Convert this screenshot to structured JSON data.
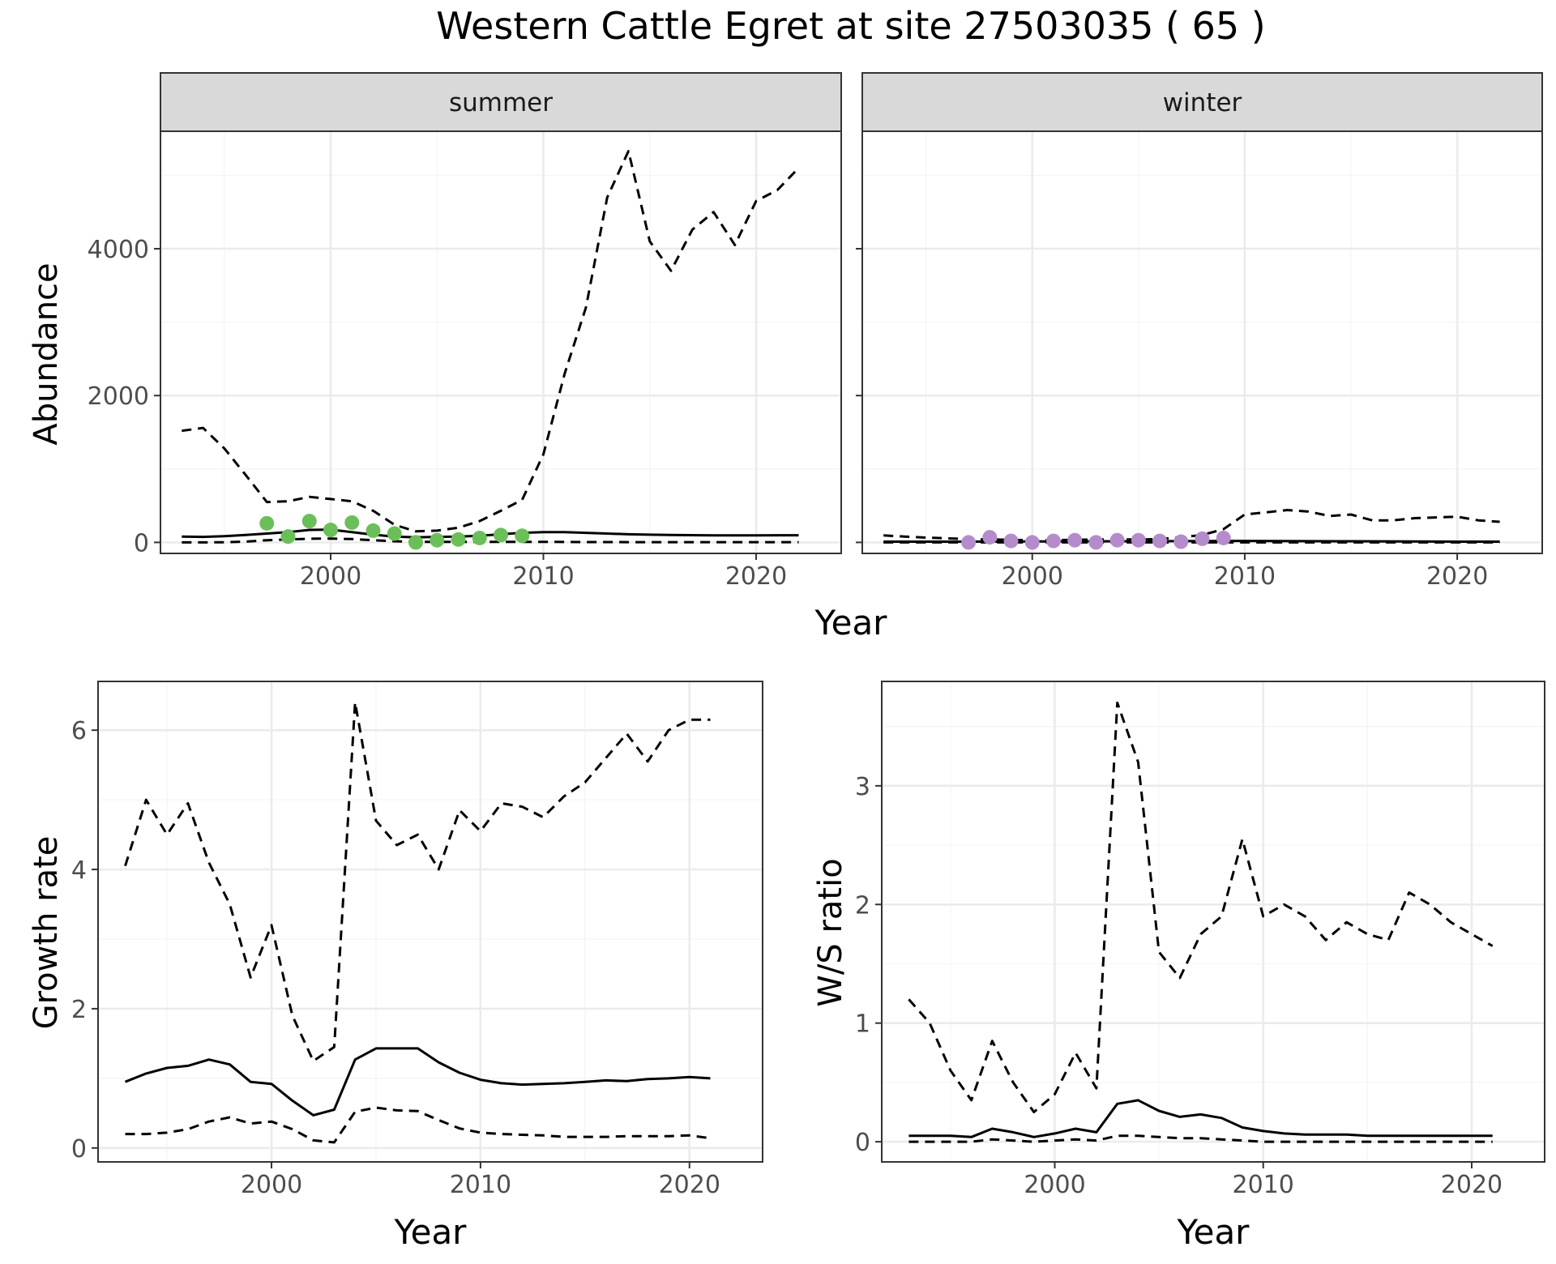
{
  "figure": {
    "title": "Western Cattle Egret at site 27503035 ( 65 )"
  },
  "colors": {
    "summer_points": "#6bbf59",
    "winter_points": "#b48ccb",
    "line": "#000000",
    "strip_bg": "#d9d9d9",
    "grid_major": "#ebebeb",
    "grid_minor": "#f5f5f5",
    "tick_text": "#4d4d4d"
  },
  "chart_data": [
    {
      "type": "line",
      "title": "",
      "facet": "summer",
      "xlabel": "Year",
      "ylabel": "Abundance",
      "xlim": [
        1992,
        2024
      ],
      "ylim": [
        -150,
        5600
      ],
      "x_ticks": [
        2000,
        2010,
        2020
      ],
      "y_ticks": [
        0,
        2000,
        4000
      ],
      "grid": true,
      "series": [
        {
          "style": "solid",
          "x": [
            1993,
            1994,
            1995,
            1996,
            1997,
            1998,
            1999,
            2000,
            2001,
            2002,
            2003,
            2004,
            2005,
            2006,
            2007,
            2008,
            2009,
            2010,
            2011,
            2012,
            2013,
            2014,
            2015,
            2016,
            2017,
            2018,
            2019,
            2020,
            2021,
            2022
          ],
          "y": [
            80,
            75,
            85,
            100,
            120,
            140,
            170,
            175,
            140,
            105,
            80,
            70,
            75,
            80,
            90,
            110,
            130,
            140,
            140,
            130,
            120,
            110,
            105,
            100,
            98,
            96,
            96,
            96,
            97,
            97
          ]
        },
        {
          "style": "dashed",
          "x": [
            1993,
            1994,
            1995,
            1996,
            1997,
            1998,
            1999,
            2000,
            2001,
            2002,
            2003,
            2004,
            2005,
            2006,
            2007,
            2008,
            2009,
            2010,
            2011,
            2012,
            2013,
            2014,
            2015,
            2016,
            2017,
            2018,
            2019,
            2020,
            2021,
            2022
          ],
          "y": [
            1520,
            1560,
            1280,
            920,
            550,
            560,
            620,
            590,
            560,
            430,
            240,
            150,
            160,
            200,
            290,
            430,
            580,
            1200,
            2300,
            3200,
            4700,
            5330,
            4100,
            3700,
            4260,
            4500,
            4050,
            4650,
            4800,
            5100
          ]
        },
        {
          "style": "dashed",
          "x": [
            1993,
            1994,
            1995,
            1996,
            1997,
            1998,
            1999,
            2000,
            2001,
            2002,
            2003,
            2004,
            2005,
            2006,
            2007,
            2008,
            2009,
            2010,
            2011,
            2012,
            2013,
            2014,
            2015,
            2016,
            2017,
            2018,
            2019,
            2020,
            2021,
            2022
          ],
          "y": [
            0,
            0,
            2,
            10,
            30,
            40,
            50,
            52,
            45,
            30,
            15,
            8,
            8,
            8,
            8,
            8,
            8,
            8,
            6,
            5,
            4,
            3,
            3,
            3,
            3,
            3,
            3,
            3,
            3,
            3
          ]
        },
        {
          "style": "points",
          "x": [
            1997,
            1998,
            1999,
            2000,
            2001,
            2002,
            2003,
            2004,
            2005,
            2006,
            2007,
            2008,
            2009
          ],
          "y": [
            260,
            80,
            290,
            170,
            270,
            160,
            120,
            0,
            30,
            40,
            60,
            100,
            90
          ]
        }
      ]
    },
    {
      "type": "line",
      "title": "",
      "facet": "winter",
      "xlabel": "Year",
      "ylabel": "Abundance",
      "xlim": [
        1992,
        2024
      ],
      "ylim": [
        -150,
        5600
      ],
      "x_ticks": [
        2000,
        2010,
        2020
      ],
      "y_ticks": [
        0,
        2000,
        4000
      ],
      "grid": true,
      "series": [
        {
          "style": "solid",
          "x": [
            1993,
            1996,
            2000,
            2005,
            2010,
            2015,
            2020,
            2022
          ],
          "y": [
            10,
            10,
            12,
            15,
            20,
            15,
            10,
            10
          ]
        },
        {
          "style": "dashed",
          "x": [
            1993,
            1994,
            1995,
            1996,
            1997,
            1998,
            1999,
            2000,
            2001,
            2002,
            2003,
            2004,
            2005,
            2006,
            2007,
            2008,
            2009,
            2010,
            2011,
            2012,
            2013,
            2014,
            2015,
            2016,
            2017,
            2018,
            2019,
            2020,
            2021,
            2022
          ],
          "y": [
            95,
            80,
            65,
            55,
            45,
            40,
            35,
            30,
            30,
            35,
            40,
            40,
            40,
            45,
            70,
            100,
            180,
            380,
            410,
            440,
            420,
            360,
            380,
            300,
            300,
            330,
            340,
            350,
            300,
            280
          ]
        },
        {
          "style": "dashed",
          "x": [
            1993,
            2000,
            2010,
            2022
          ],
          "y": [
            0,
            0,
            0,
            0
          ]
        },
        {
          "style": "points",
          "x": [
            1997,
            1998,
            1999,
            2000,
            2001,
            2002,
            2003,
            2004,
            2005,
            2006,
            2007,
            2008,
            2009
          ],
          "y": [
            0,
            70,
            20,
            0,
            20,
            30,
            0,
            30,
            30,
            20,
            10,
            50,
            60
          ]
        }
      ]
    },
    {
      "type": "line",
      "title": "",
      "xlabel": "Year",
      "ylabel": "Growth rate",
      "xlim": [
        1991.7,
        2023.5
      ],
      "ylim": [
        -0.2,
        6.7
      ],
      "x_ticks": [
        2000,
        2010,
        2020
      ],
      "y_ticks": [
        0,
        2,
        4,
        6
      ],
      "grid": true,
      "series": [
        {
          "style": "solid",
          "x": [
            1993,
            1994,
            1995,
            1996,
            1997,
            1998,
            1999,
            2000,
            2001,
            2002,
            2003,
            2004,
            2005,
            2006,
            2007,
            2008,
            2009,
            2010,
            2011,
            2012,
            2013,
            2014,
            2015,
            2016,
            2017,
            2018,
            2019,
            2020,
            2021
          ],
          "y": [
            0.95,
            1.07,
            1.15,
            1.18,
            1.27,
            1.2,
            0.95,
            0.92,
            0.68,
            0.47,
            0.55,
            1.27,
            1.43,
            1.43,
            1.43,
            1.23,
            1.08,
            0.98,
            0.93,
            0.91,
            0.92,
            0.93,
            0.95,
            0.97,
            0.96,
            0.99,
            1.0,
            1.02,
            1.0
          ]
        },
        {
          "style": "dashed",
          "x": [
            1993,
            1994,
            1995,
            1996,
            1997,
            1998,
            1999,
            2000,
            2001,
            2002,
            2003,
            2004,
            2005,
            2006,
            2007,
            2008,
            2009,
            2010,
            2011,
            2012,
            2013,
            2014,
            2015,
            2016,
            2017,
            2018,
            2019,
            2020,
            2021
          ],
          "y": [
            4.05,
            5.0,
            4.5,
            4.95,
            4.1,
            3.5,
            2.45,
            3.2,
            1.9,
            1.25,
            1.45,
            6.4,
            4.7,
            4.35,
            4.5,
            4.0,
            4.85,
            4.55,
            4.95,
            4.9,
            4.75,
            5.05,
            5.25,
            5.6,
            5.95,
            5.55,
            6.0,
            6.15,
            6.15
          ]
        },
        {
          "style": "dashed",
          "x": [
            1993,
            1994,
            1995,
            1996,
            1997,
            1998,
            1999,
            2000,
            2001,
            2002,
            2003,
            2004,
            2005,
            2006,
            2007,
            2008,
            2009,
            2010,
            2011,
            2012,
            2013,
            2014,
            2015,
            2016,
            2017,
            2018,
            2019,
            2020,
            2021
          ],
          "y": [
            0.2,
            0.2,
            0.22,
            0.27,
            0.38,
            0.44,
            0.35,
            0.38,
            0.27,
            0.11,
            0.08,
            0.52,
            0.58,
            0.54,
            0.53,
            0.4,
            0.28,
            0.22,
            0.2,
            0.19,
            0.18,
            0.16,
            0.16,
            0.16,
            0.17,
            0.17,
            0.17,
            0.18,
            0.14
          ]
        }
      ]
    },
    {
      "type": "line",
      "title": "",
      "xlabel": "Year",
      "ylabel": "W/S ratio",
      "xlim": [
        1991.7,
        2023.5
      ],
      "ylim": [
        -0.17,
        3.88
      ],
      "x_ticks": [
        2000,
        2010,
        2020
      ],
      "y_ticks": [
        0,
        1,
        2,
        3
      ],
      "grid": true,
      "series": [
        {
          "style": "solid",
          "x": [
            1993,
            1994,
            1995,
            1996,
            1997,
            1998,
            1999,
            2000,
            2001,
            2002,
            2003,
            2004,
            2005,
            2006,
            2007,
            2008,
            2009,
            2010,
            2011,
            2012,
            2013,
            2014,
            2015,
            2016,
            2017,
            2018,
            2019,
            2020,
            2021
          ],
          "y": [
            0.05,
            0.05,
            0.05,
            0.04,
            0.11,
            0.08,
            0.04,
            0.07,
            0.11,
            0.08,
            0.32,
            0.35,
            0.26,
            0.21,
            0.23,
            0.2,
            0.12,
            0.09,
            0.07,
            0.06,
            0.06,
            0.06,
            0.05,
            0.05,
            0.05,
            0.05,
            0.05,
            0.05,
            0.05
          ]
        },
        {
          "style": "dashed",
          "x": [
            1993,
            1994,
            1995,
            1996,
            1997,
            1998,
            1999,
            2000,
            2001,
            2002,
            2003,
            2004,
            2005,
            2006,
            2007,
            2008,
            2009,
            2010,
            2011,
            2012,
            2013,
            2014,
            2015,
            2016,
            2017,
            2018,
            2019,
            2020,
            2021
          ],
          "y": [
            1.2,
            1.0,
            0.6,
            0.35,
            0.85,
            0.5,
            0.25,
            0.4,
            0.75,
            0.45,
            3.7,
            3.2,
            1.6,
            1.38,
            1.75,
            1.9,
            2.55,
            1.9,
            2.0,
            1.9,
            1.7,
            1.85,
            1.75,
            1.7,
            2.1,
            2.0,
            1.85,
            1.75,
            1.65
          ]
        },
        {
          "style": "dashed",
          "x": [
            1993,
            1994,
            1995,
            1996,
            1997,
            1998,
            1999,
            2000,
            2001,
            2002,
            2003,
            2004,
            2005,
            2006,
            2007,
            2008,
            2009,
            2010,
            2011,
            2012,
            2013,
            2014,
            2015,
            2016,
            2017,
            2018,
            2019,
            2020,
            2021
          ],
          "y": [
            0,
            0,
            0,
            0,
            0.02,
            0.01,
            0,
            0.01,
            0.02,
            0.01,
            0.05,
            0.05,
            0.04,
            0.03,
            0.03,
            0.02,
            0.01,
            0,
            0,
            0,
            0,
            0,
            0,
            0,
            0,
            0,
            0,
            0,
            0
          ]
        }
      ]
    }
  ]
}
